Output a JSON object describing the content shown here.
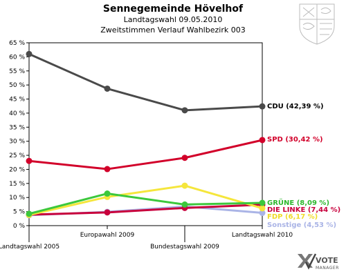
{
  "chart_data": {
    "type": "line",
    "title": "Sennegemeinde Hövelhof",
    "subtitle1": "Landtagswahl 09.05.2010",
    "subtitle2": "Zweitstimmen Verlauf Wahlbezirk 003",
    "categories": [
      "Landtagswahl 2005",
      "Europawahl 2009",
      "Bundestagswahl 2009",
      "Landtagswahl 2010"
    ],
    "yticks": [
      "0 %",
      "5 %",
      "10 %",
      "15 %",
      "20 %",
      "25 %",
      "30 %",
      "35 %",
      "40 %",
      "45 %",
      "50 %",
      "55 %",
      "60 %",
      "65 %"
    ],
    "ylim": [
      0,
      65
    ],
    "grid": false,
    "series": [
      {
        "name": "CDU",
        "color": "#4a4a4a",
        "values": [
          61.0,
          48.7,
          41.0,
          42.39
        ],
        "label": "CDU (42,39 %)",
        "label_color": "#000000"
      },
      {
        "name": "SPD",
        "color": "#d2002a",
        "values": [
          23.0,
          20.1,
          24.1,
          30.42
        ],
        "label": "SPD (30,42 %)",
        "label_color": "#d2002a"
      },
      {
        "name": "GRÜNE",
        "color": "#3cc83c",
        "values": [
          4.2,
          11.4,
          7.5,
          8.09
        ],
        "label": "GRÜNE (8,09 %)",
        "label_color": "#2eb82e"
      },
      {
        "name": "FDP",
        "color": "#f5e63c",
        "values": [
          3.8,
          10.2,
          14.2,
          6.17
        ],
        "label": "FDP (6,17 %)",
        "label_color": "#f0dc28"
      },
      {
        "name": "DIE LINKE",
        "color": "#c8003c",
        "values": [
          3.9,
          4.7,
          6.3,
          7.44
        ],
        "label": "DIE LINKE (7,44 %)",
        "label_color": "#c8003c"
      },
      {
        "name": "Sonstige",
        "color": "#aab4e6",
        "values": [
          3.7,
          4.9,
          6.8,
          4.53
        ],
        "label": "Sonstige (4,53 %)",
        "label_color": "#aab4e6"
      }
    ]
  },
  "logo": {
    "brand_top": "VOTE",
    "brand_bottom": "MANAGER"
  },
  "colors": {
    "axis": "#000000",
    "background": "#ffffff"
  }
}
